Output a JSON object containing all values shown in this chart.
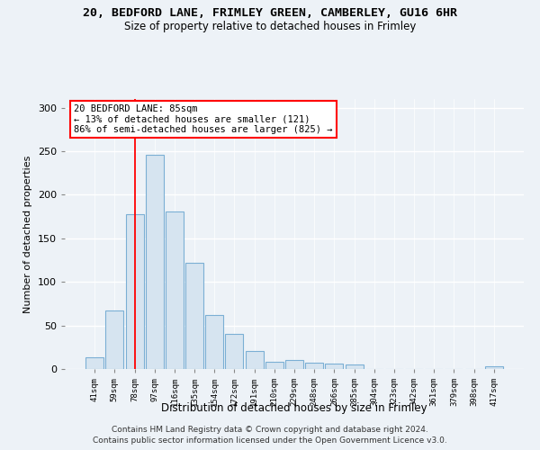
{
  "title": "20, BEDFORD LANE, FRIMLEY GREEN, CAMBERLEY, GU16 6HR",
  "subtitle": "Size of property relative to detached houses in Frimley",
  "xlabel": "Distribution of detached houses by size in Frimley",
  "ylabel": "Number of detached properties",
  "bar_color": "#d6e4f0",
  "bar_edge_color": "#7bafd4",
  "categories": [
    "41sqm",
    "59sqm",
    "78sqm",
    "97sqm",
    "116sqm",
    "135sqm",
    "154sqm",
    "172sqm",
    "191sqm",
    "210sqm",
    "229sqm",
    "248sqm",
    "266sqm",
    "285sqm",
    "304sqm",
    "323sqm",
    "342sqm",
    "361sqm",
    "379sqm",
    "398sqm",
    "417sqm"
  ],
  "values": [
    13,
    67,
    178,
    246,
    181,
    122,
    62,
    40,
    21,
    8,
    10,
    7,
    6,
    5,
    0,
    0,
    0,
    0,
    0,
    0,
    3
  ],
  "annotation_line1": "20 BEDFORD LANE: 85sqm",
  "annotation_line2": "← 13% of detached houses are smaller (121)",
  "annotation_line3": "86% of semi-detached houses are larger (825) →",
  "ylim": [
    0,
    310
  ],
  "yticks": [
    0,
    50,
    100,
    150,
    200,
    250,
    300
  ],
  "redline_bin": 2,
  "footer1": "Contains HM Land Registry data © Crown copyright and database right 2024.",
  "footer2": "Contains public sector information licensed under the Open Government Licence v3.0.",
  "bg_color": "#edf2f7",
  "grid_color": "#ffffff"
}
